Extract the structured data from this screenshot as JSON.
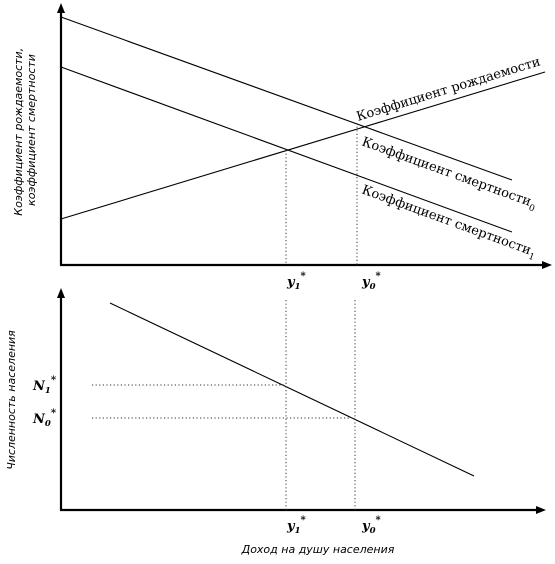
{
  "top_panel": {
    "y_axis_label_line1": "Коэффициент рождаемости,",
    "y_axis_label_line2": "коэффициент смертности",
    "birth_rate_label": "Коэффициент рождаемости",
    "death_rate_0_label": "Коэффициент смертности",
    "death_rate_0_subscript": "0",
    "death_rate_1_label": "Коэффициент смертности",
    "death_rate_1_subscript": "1"
  },
  "bottom_panel": {
    "y_axis_label": "Численность населения",
    "x_axis_label": "Доход на душу населения"
  },
  "markers": {
    "y_letter": "y",
    "n_letter": "N",
    "star": "*",
    "index_1": "1",
    "index_0": "0"
  }
}
